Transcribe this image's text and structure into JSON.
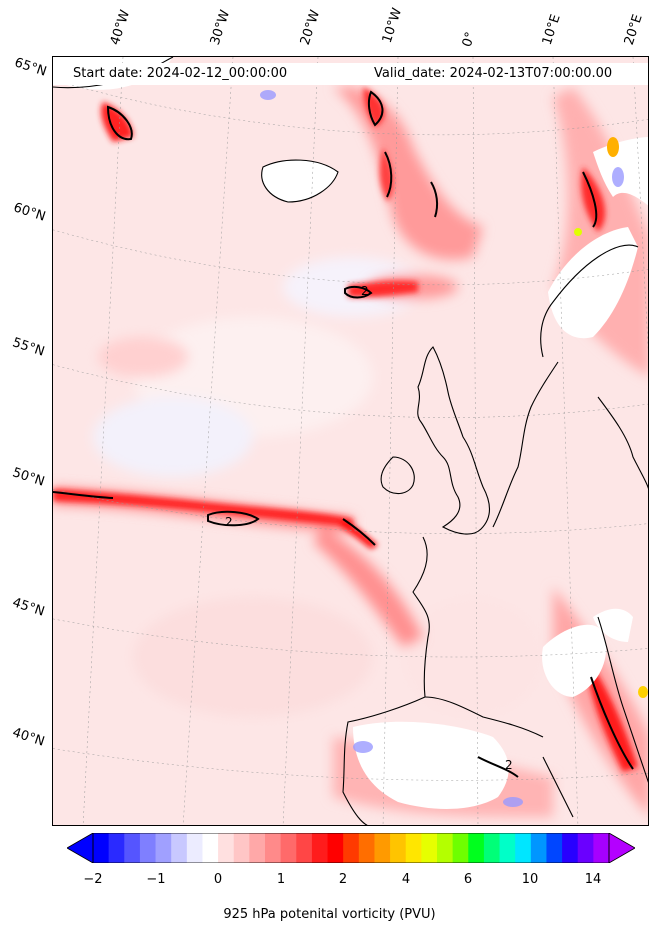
{
  "header": {
    "start_date": "Start date: 2024-02-12_00:00:00",
    "valid_date": "Valid_date: 2024-02-13T07:00:00.00"
  },
  "lon_labels": [
    "40°W",
    "30°W",
    "20°W",
    "10°W",
    "0°",
    "10°E",
    "20°E"
  ],
  "lat_labels": [
    "65°N",
    "60°N",
    "55°N",
    "50°N",
    "45°N",
    "40°N"
  ],
  "contour_labels": [
    "2",
    "2",
    "2"
  ],
  "colorbar": {
    "ticks": [
      "−2",
      "−1",
      "0",
      "1",
      "2",
      "4",
      "6",
      "10",
      "14"
    ],
    "label": "925 hPa potenital vorticity (PVU)",
    "colors": [
      "#0000ff",
      "#2a2aff",
      "#5555ff",
      "#7f7fff",
      "#a0a0ff",
      "#c8c8ff",
      "#ececff",
      "#ffffff",
      "#ffe0e0",
      "#ffc6c6",
      "#ffa8a8",
      "#ff8a8a",
      "#ff6a6a",
      "#ff4646",
      "#ff1c1c",
      "#ff0000",
      "#ff3a00",
      "#ff6e00",
      "#ff9a00",
      "#ffc400",
      "#ffe600",
      "#e6ff00",
      "#b4ff00",
      "#6eff00",
      "#00ff1e",
      "#00ff78",
      "#00ffc8",
      "#00e6ff",
      "#0096ff",
      "#0046ff",
      "#2800ff",
      "#6a00ff",
      "#a600ff"
    ],
    "under_color": "#0000ff",
    "over_color": "#b400ff"
  }
}
